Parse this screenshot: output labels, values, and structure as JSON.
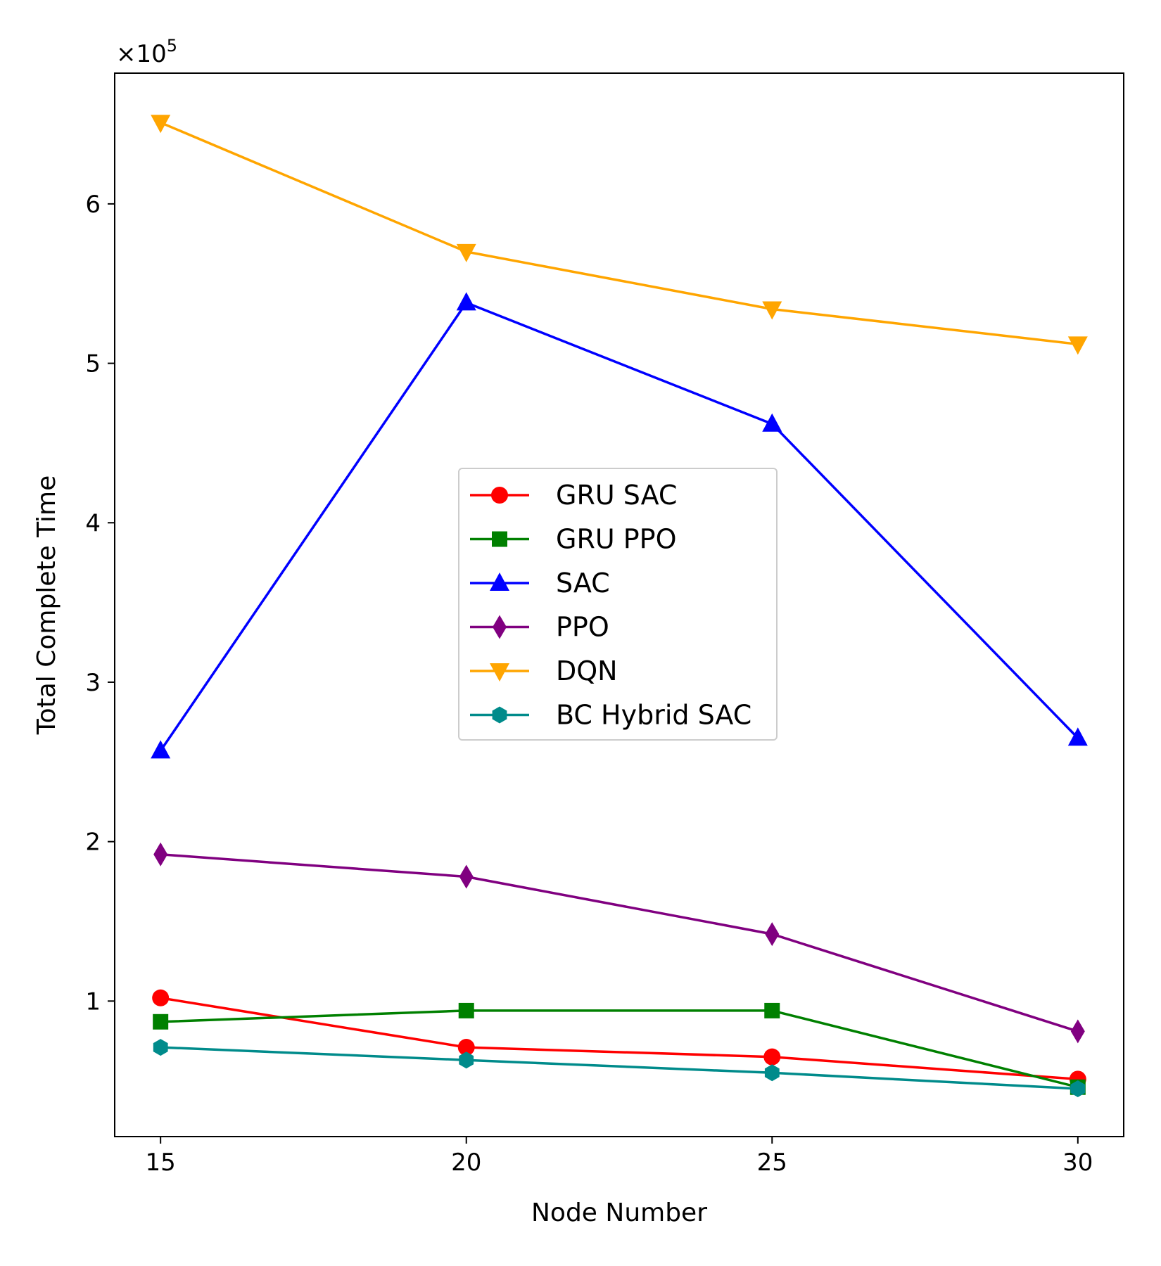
{
  "chart_data": {
    "type": "line",
    "title": "",
    "xlabel": "Node Number",
    "ylabel": "Total Complete Time",
    "y_scale_label": "×10",
    "y_scale_exponent": "5",
    "x": [
      15,
      20,
      25,
      30
    ],
    "x_tick_labels": [
      "15",
      "20",
      "25",
      "30"
    ],
    "xlim": [
      14.25,
      30.75
    ],
    "y_ticks": [
      1,
      2,
      3,
      4,
      5,
      6
    ],
    "y_tick_labels": [
      "1",
      "2",
      "3",
      "4",
      "5",
      "6"
    ],
    "ylim": [
      0.15,
      6.82
    ],
    "grid": false,
    "legend_position": "center",
    "series": [
      {
        "name": "GRU SAC",
        "values": [
          1.02,
          0.71,
          0.65,
          0.51
        ],
        "color": "#ff0000",
        "marker": "circle"
      },
      {
        "name": "GRU PPO",
        "values": [
          0.87,
          0.94,
          0.94,
          0.46
        ],
        "color": "#008000",
        "marker": "square"
      },
      {
        "name": "SAC",
        "values": [
          2.57,
          5.38,
          4.62,
          2.65
        ],
        "color": "#0000ff",
        "marker": "triangle-up"
      },
      {
        "name": "PPO",
        "values": [
          1.92,
          1.78,
          1.42,
          0.81
        ],
        "color": "#800080",
        "marker": "diamond"
      },
      {
        "name": "DQN",
        "values": [
          6.51,
          5.7,
          5.34,
          5.12
        ],
        "color": "#ffa500",
        "marker": "triangle-down"
      },
      {
        "name": "BC Hybrid SAC",
        "values": [
          0.71,
          0.63,
          0.55,
          0.45
        ],
        "color": "#008b8b",
        "marker": "hexagon"
      }
    ]
  }
}
